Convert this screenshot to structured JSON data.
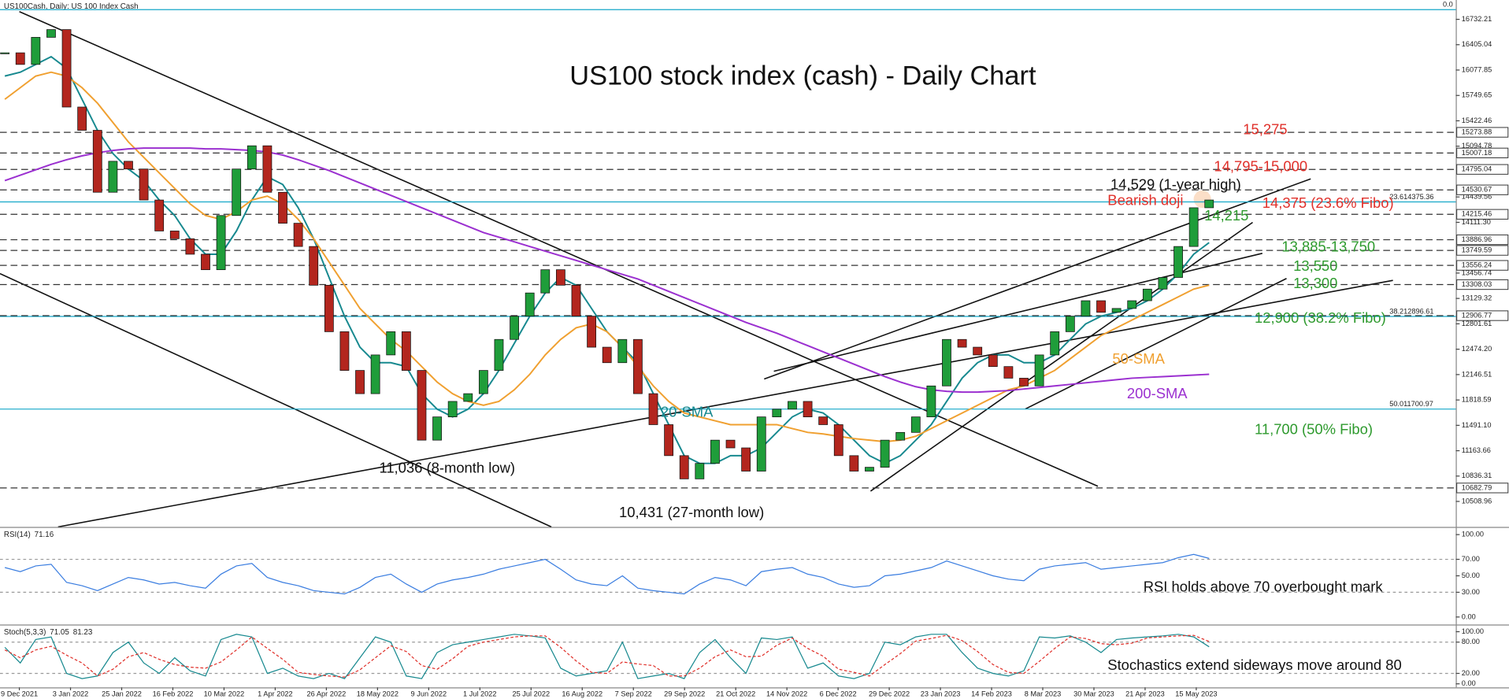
{
  "chart_data": [
    {
      "type": "candlestick",
      "header": "US100Cash, Daily:  US 100 Index Cash",
      "title": "US100 stock index (cash) -  Daily Chart",
      "x_axis_labels": [
        "9 Dec 2021",
        "3 Jan 2022",
        "25 Jan 2022",
        "16 Feb 2022",
        "10 Mar 2022",
        "1 Apr 2022",
        "26 Apr 2022",
        "18 May 2022",
        "9 Jun 2022",
        "1 Jul 2022",
        "25 Jul 2022",
        "16 Aug 2022",
        "7 Sep 2022",
        "29 Sep 2022",
        "21 Oct 2022",
        "14 Nov 2022",
        "6 Dec 2022",
        "29 Dec 2022",
        "23 Jan 2023",
        "14 Feb 2023",
        "8 Mar 2023",
        "30 Mar 2023",
        "21 Apr 2023",
        "15 May 2023"
      ],
      "up_color": "#1f9d3a",
      "down_color": "#b3261e",
      "ylim": [
        10180,
        16882
      ],
      "yticks": [
        16732.21,
        16405.04,
        16077.85,
        15749.65,
        15422.46,
        15094.78,
        14439.56,
        {
          "value": 14111.3,
          "label": "14111.30"
        },
        13456.74,
        13129.32,
        12801.61,
        {
          "value": 12474.2,
          "label": "12474.20"
        },
        12146.51,
        11818.59,
        {
          "value": 11491.1,
          "label": "11491.10"
        },
        11163.66,
        10836.31,
        10508.96
      ],
      "levels": [
        15273.88,
        15007.18,
        14795.04,
        14530.67,
        14215.46,
        13886.96,
        13749.59,
        13556.24,
        13308.03,
        12906.77,
        10682.79
      ],
      "fibo": [
        {
          "ratio": "0.0",
          "value": 16857
        },
        {
          "ratio": "23.6",
          "value": 14375.36,
          "label": "14375.36"
        },
        {
          "ratio": "38.2",
          "value": 12896.61,
          "label": "12896.61"
        },
        {
          "ratio": "50.0",
          "value": 11700.97,
          "label": "11700.97"
        }
      ],
      "fibo_color": "#14a7c9",
      "values": [
        16300,
        16150,
        16500,
        16600,
        15600,
        15300,
        14500,
        14900,
        14800,
        14400,
        14000,
        13900,
        13700,
        13500,
        14200,
        14800,
        15100,
        14500,
        14100,
        13800,
        13300,
        12700,
        12200,
        11900,
        12400,
        12700,
        12200,
        11300,
        11600,
        11800,
        11900,
        12200,
        12600,
        12900,
        13200,
        13500,
        13300,
        12900,
        12500,
        12300,
        12600,
        11900,
        11500,
        11100,
        10800,
        11000,
        11300,
        11200,
        10900,
        11600,
        11700,
        11800,
        11600,
        11500,
        11100,
        10900,
        10950,
        11300,
        11400,
        11600,
        12000,
        12600,
        12500,
        12400,
        12250,
        12100,
        12000,
        12400,
        12700,
        12900,
        13100,
        12950,
        13000,
        13100,
        13250,
        13400,
        13800,
        14300,
        14400
      ],
      "series": [
        {
          "name": "20-SMA",
          "color": "#17898f",
          "values": [
            16000,
            16050,
            16150,
            16250,
            16100,
            15700,
            15300,
            15000,
            14800,
            14650,
            14400,
            14200,
            13900,
            13700,
            13700,
            14000,
            14400,
            14700,
            14600,
            14300,
            13900,
            13400,
            12900,
            12500,
            12300,
            12300,
            12250,
            11900,
            11700,
            11600,
            11700,
            11900,
            12200,
            12550,
            12900,
            13200,
            13400,
            13300,
            13000,
            12700,
            12500,
            12300,
            11900,
            11500,
            11100,
            11000,
            11000,
            11100,
            11100,
            11200,
            11400,
            11600,
            11700,
            11650,
            11500,
            11300,
            11100,
            11000,
            11100,
            11300,
            11500,
            11800,
            12100,
            12300,
            12400,
            12400,
            12300,
            12300,
            12400,
            12600,
            12800,
            12900,
            12950,
            13000,
            13100,
            13250,
            13450,
            13700,
            13850
          ]
        },
        {
          "name": "50-SMA",
          "color": "#f0a030",
          "values": [
            15700,
            15850,
            16000,
            16050,
            16000,
            15850,
            15650,
            15400,
            15150,
            14950,
            14750,
            14550,
            14350,
            14200,
            14150,
            14250,
            14400,
            14450,
            14350,
            14150,
            13900,
            13600,
            13300,
            13000,
            12800,
            12600,
            12450,
            12250,
            12050,
            11900,
            11800,
            11750,
            11800,
            11950,
            12150,
            12400,
            12600,
            12750,
            12800,
            12700,
            12500,
            12250,
            12000,
            11800,
            11650,
            11600,
            11550,
            11500,
            11500,
            11500,
            11500,
            11450,
            11400,
            11380,
            11350,
            11320,
            11300,
            11280,
            11300,
            11350,
            11450,
            11550,
            11650,
            11750,
            11850,
            11950,
            12000,
            12100,
            12200,
            12350,
            12500,
            12650,
            12750,
            12850,
            12950,
            13050,
            13150,
            13250,
            13300
          ]
        },
        {
          "name": "200-SMA",
          "color": "#9b30d0",
          "values": [
            14650,
            14720,
            14790,
            14860,
            14920,
            14970,
            15010,
            15040,
            15060,
            15070,
            15070,
            15070,
            15070,
            15060,
            15060,
            15050,
            15040,
            15020,
            14980,
            14920,
            14850,
            14780,
            14700,
            14620,
            14540,
            14460,
            14380,
            14300,
            14220,
            14140,
            14060,
            13980,
            13920,
            13860,
            13800,
            13740,
            13680,
            13620,
            13560,
            13500,
            13440,
            13380,
            13300,
            13220,
            13140,
            13060,
            12980,
            12900,
            12820,
            12750,
            12680,
            12600,
            12520,
            12440,
            12360,
            12280,
            12200,
            12120,
            12050,
            11990,
            11950,
            11930,
            11920,
            11920,
            11930,
            11940,
            11960,
            11980,
            12000,
            12020,
            12040,
            12060,
            12080,
            12100,
            12110,
            12120,
            12130,
            12140,
            12150
          ]
        }
      ],
      "annotations": [
        {
          "text": "15,275",
          "color": "#e0302a"
        },
        {
          "text": "14,795-15,000",
          "color": "#e0302a"
        },
        {
          "text": "14,529 (1-year high)",
          "color": "#111111"
        },
        {
          "text": "Bearish doji",
          "color": "#e0302a"
        },
        {
          "text": "14,375 (23.6% Fibo)",
          "color": "#e0302a"
        },
        {
          "text": "14,215",
          "color": "#2e9a2e"
        },
        {
          "text": "13,885-13,750",
          "color": "#2e9a2e"
        },
        {
          "text": "13,550",
          "color": "#2e9a2e"
        },
        {
          "text": "13,300",
          "color": "#2e9a2e"
        },
        {
          "text": "12,900 (38.2% Fibo)",
          "color": "#2e9a2e"
        },
        {
          "text": "11,700 (50% Fibo)",
          "color": "#2e9a2e"
        },
        {
          "text": "11,036 (8-month low)",
          "color": "#111111"
        },
        {
          "text": "10,431 (27-month low)",
          "color": "#111111"
        }
      ]
    },
    {
      "type": "line",
      "label": "RSI(14)",
      "ylim": [
        -8,
        107
      ],
      "yticks": [
        {
          "value": 100,
          "label": "100.00"
        },
        {
          "value": 70,
          "label": "70.00"
        },
        {
          "value": 50,
          "label": "50.00"
        },
        {
          "value": 30,
          "label": "30.00"
        },
        {
          "value": 0,
          "label": "0.00"
        }
      ],
      "note": "RSI holds above 70 overbought mark",
      "series": [
        {
          "name": "RSI",
          "color": "#3a7de0",
          "values": [
            60,
            55,
            62,
            64,
            42,
            38,
            32,
            40,
            48,
            45,
            40,
            42,
            38,
            35,
            52,
            62,
            65,
            48,
            42,
            38,
            32,
            30,
            28,
            36,
            48,
            52,
            40,
            30,
            40,
            45,
            48,
            52,
            58,
            62,
            66,
            70,
            58,
            45,
            40,
            38,
            50,
            35,
            32,
            30,
            28,
            40,
            48,
            45,
            38,
            55,
            58,
            60,
            52,
            48,
            40,
            36,
            38,
            50,
            52,
            56,
            60,
            68,
            62,
            56,
            50,
            46,
            44,
            58,
            62,
            64,
            66,
            58,
            60,
            62,
            64,
            66,
            72,
            76,
            71.16
          ]
        }
      ]
    },
    {
      "type": "line",
      "label": "Stoch(5,3,3)",
      "ylim": [
        -5,
        110
      ],
      "yticks": [
        {
          "value": 100,
          "label": "100.00"
        },
        {
          "value": 80,
          "label": "80.00"
        },
        {
          "value": 20,
          "label": "20.00"
        },
        {
          "value": 0,
          "label": "0.00"
        }
      ],
      "note": "Stochastics extend sideways move around 80",
      "series": [
        {
          "name": "%K",
          "color": "#17898f",
          "values": [
            70,
            40,
            85,
            90,
            20,
            10,
            15,
            60,
            80,
            40,
            20,
            50,
            25,
            15,
            85,
            95,
            90,
            20,
            30,
            15,
            10,
            20,
            10,
            50,
            90,
            80,
            15,
            10,
            60,
            75,
            80,
            85,
            90,
            95,
            92,
            88,
            30,
            15,
            20,
            25,
            80,
            10,
            15,
            20,
            10,
            60,
            85,
            50,
            20,
            88,
            85,
            90,
            30,
            40,
            15,
            10,
            20,
            80,
            75,
            90,
            95,
            95,
            60,
            30,
            20,
            15,
            25,
            90,
            88,
            92,
            80,
            60,
            85,
            88,
            90,
            92,
            95,
            90,
            71.05
          ]
        },
        {
          "name": "%D",
          "color": "#e0302a",
          "values": [
            65,
            50,
            65,
            72,
            55,
            40,
            15,
            28,
            52,
            60,
            47,
            37,
            32,
            30,
            42,
            65,
            90,
            68,
            47,
            22,
            18,
            15,
            13,
            27,
            50,
            73,
            62,
            35,
            28,
            48,
            72,
            80,
            85,
            90,
            92,
            92,
            70,
            44,
            22,
            20,
            42,
            38,
            35,
            15,
            15,
            30,
            52,
            65,
            52,
            53,
            74,
            88,
            68,
            53,
            28,
            22,
            15,
            37,
            58,
            82,
            87,
            93,
            83,
            62,
            37,
            22,
            20,
            43,
            68,
            90,
            87,
            77,
            75,
            78,
            88,
            90,
            92,
            93,
            81.23
          ]
        }
      ]
    }
  ]
}
